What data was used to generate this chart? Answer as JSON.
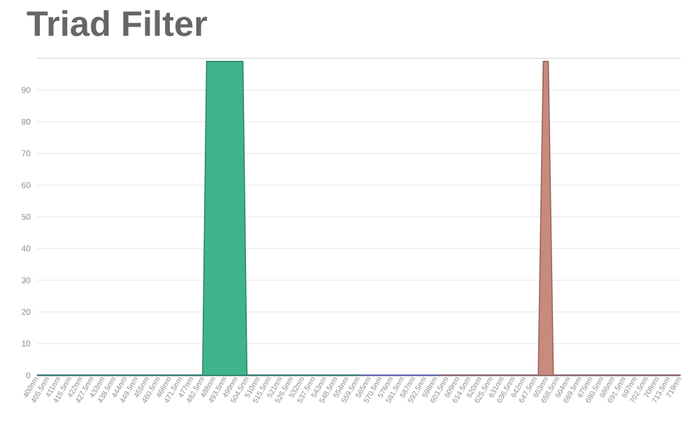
{
  "chart_data": {
    "type": "area",
    "title": "Triad Filter",
    "series": [
      {
        "color": "#3fb48a",
        "x": [
          400,
          482,
          484,
          502,
          504,
          560
        ],
        "values": [
          0,
          0,
          99,
          99,
          0,
          0
        ]
      },
      {
        "color": "#c98a7e",
        "x": [
          600,
          648.5,
          651,
          653.5,
          656,
          719
        ],
        "values": [
          0,
          0,
          99,
          99,
          0,
          0
        ]
      }
    ],
    "xlim": [
      400,
      719
    ],
    "ylim": [
      0,
      100
    ],
    "xticks": [
      {
        "value": 400,
        "label": "400nm"
      },
      {
        "value": 405.5,
        "label": "405.5nm"
      },
      {
        "value": 411,
        "label": "411nm"
      },
      {
        "value": 416.5,
        "label": "416.5nm"
      },
      {
        "value": 422,
        "label": "422nm"
      },
      {
        "value": 427.5,
        "label": "427.5nm"
      },
      {
        "value": 433,
        "label": "433nm"
      },
      {
        "value": 438.5,
        "label": "438.5nm"
      },
      {
        "value": 444,
        "label": "444nm"
      },
      {
        "value": 449.5,
        "label": "449.5nm"
      },
      {
        "value": 455,
        "label": "455nm"
      },
      {
        "value": 460.5,
        "label": "460.5nm"
      },
      {
        "value": 466,
        "label": "466nm"
      },
      {
        "value": 471.5,
        "label": "471.5nm"
      },
      {
        "value": 477,
        "label": "477nm"
      },
      {
        "value": 482.5,
        "label": "482.5nm"
      },
      {
        "value": 488,
        "label": "488nm"
      },
      {
        "value": 493.5,
        "label": "493.5nm"
      },
      {
        "value": 499,
        "label": "499nm"
      },
      {
        "value": 504.5,
        "label": "504.5nm"
      },
      {
        "value": 510,
        "label": "510nm"
      },
      {
        "value": 515.5,
        "label": "515.5nm"
      },
      {
        "value": 521,
        "label": "521nm"
      },
      {
        "value": 526.5,
        "label": "526.5nm"
      },
      {
        "value": 532,
        "label": "532nm"
      },
      {
        "value": 537.5,
        "label": "537.5nm"
      },
      {
        "value": 543,
        "label": "543nm"
      },
      {
        "value": 548.5,
        "label": "548.5nm"
      },
      {
        "value": 554,
        "label": "554nm"
      },
      {
        "value": 559.5,
        "label": "559.5nm"
      },
      {
        "value": 565,
        "label": "565nm"
      },
      {
        "value": 570.5,
        "label": "570.5nm"
      },
      {
        "value": 576,
        "label": "576nm"
      },
      {
        "value": 581.5,
        "label": "581.5nm"
      },
      {
        "value": 587,
        "label": "587nm"
      },
      {
        "value": 592.5,
        "label": "592.5nm"
      },
      {
        "value": 598,
        "label": "598nm"
      },
      {
        "value": 603.5,
        "label": "603.5nm"
      },
      {
        "value": 609,
        "label": "609nm"
      },
      {
        "value": 614.5,
        "label": "614.5nm"
      },
      {
        "value": 620,
        "label": "620nm"
      },
      {
        "value": 625.5,
        "label": "625.5nm"
      },
      {
        "value": 631,
        "label": "631nm"
      },
      {
        "value": 636.5,
        "label": "636.5nm"
      },
      {
        "value": 642,
        "label": "642nm"
      },
      {
        "value": 647.5,
        "label": "647.5nm"
      },
      {
        "value": 653,
        "label": "653nm"
      },
      {
        "value": 658.5,
        "label": "658.5nm"
      },
      {
        "value": 664,
        "label": "664nm"
      },
      {
        "value": 669.5,
        "label": "669.5nm"
      },
      {
        "value": 675,
        "label": "675nm"
      },
      {
        "value": 680.5,
        "label": "680.5nm"
      },
      {
        "value": 686,
        "label": "686nm"
      },
      {
        "value": 691.5,
        "label": "691.5nm"
      },
      {
        "value": 697,
        "label": "697nm"
      },
      {
        "value": 702.5,
        "label": "702.5nm"
      },
      {
        "value": 708,
        "label": "708nm"
      },
      {
        "value": 713.5,
        "label": "713.5nm"
      },
      {
        "value": 719,
        "label": "719nm"
      }
    ],
    "yticks": [
      0,
      10,
      20,
      30,
      40,
      50,
      60,
      70,
      80,
      90
    ],
    "grid": "y"
  }
}
